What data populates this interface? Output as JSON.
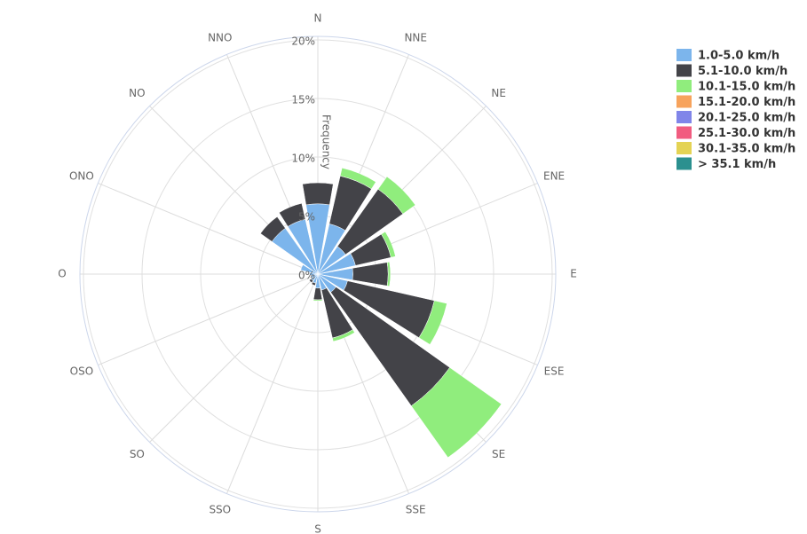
{
  "chart_data": {
    "type": "windrose",
    "categories": [
      "N",
      "NNE",
      "NE",
      "ENE",
      "E",
      "ESE",
      "SE",
      "SSE",
      "S",
      "SSO",
      "SO",
      "OSO",
      "O",
      "ONO",
      "NO",
      "NNO"
    ],
    "y_axis_title": "Frequency",
    "ylim": [
      0,
      20
    ],
    "yticks": [
      {
        "value": 0,
        "label": "0%"
      },
      {
        "value": 5,
        "label": "5%"
      },
      {
        "value": 10,
        "label": "10%"
      },
      {
        "value": 15,
        "label": "15%"
      },
      {
        "value": 20,
        "label": "20%"
      }
    ],
    "grid": true,
    "legend": "right",
    "series": [
      {
        "name": "1.0-5.0 km/h",
        "color": "#7cb5ec",
        "values": [
          6.0,
          4.4,
          2.9,
          3.3,
          3.0,
          2.6,
          1.9,
          1.4,
          1.2,
          0.8,
          0.7,
          0.6,
          0.7,
          1.5,
          4.8,
          4.8
        ]
      },
      {
        "name": "5.1-10.0 km/h",
        "color": "#434348",
        "values": [
          1.8,
          4.2,
          6.0,
          3.1,
          3.0,
          7.6,
          11.9,
          4.2,
          1.0,
          0.2,
          0.2,
          0,
          0,
          0,
          1.2,
          1.4
        ]
      },
      {
        "name": "10.1-15.0 km/h",
        "color": "#90ed7d",
        "values": [
          0,
          0.7,
          1.3,
          0.4,
          0.2,
          1.1,
          5.4,
          0.3,
          0.1,
          0,
          0,
          0,
          0,
          0,
          0,
          0
        ]
      },
      {
        "name": "15.1-20.0 km/h",
        "color": "#f7a35c",
        "values": [
          0,
          0,
          0,
          0,
          0,
          0,
          0,
          0,
          0,
          0,
          0,
          0,
          0,
          0,
          0,
          0
        ]
      },
      {
        "name": "20.1-25.0 km/h",
        "color": "#8085e9",
        "values": [
          0,
          0,
          0,
          0,
          0,
          0,
          0,
          0,
          0,
          0,
          0,
          0,
          0,
          0,
          0,
          0
        ]
      },
      {
        "name": "25.1-30.0 km/h",
        "color": "#f15c80",
        "values": [
          0,
          0,
          0,
          0,
          0,
          0,
          0,
          0,
          0,
          0,
          0,
          0,
          0,
          0,
          0,
          0
        ]
      },
      {
        "name": "30.1-35.0 km/h",
        "color": "#e4d354",
        "values": [
          0,
          0,
          0,
          0,
          0,
          0,
          0,
          0,
          0,
          0,
          0,
          0,
          0,
          0,
          0,
          0
        ]
      },
      {
        "name": "> 35.1 km/h",
        "color": "#2b908f",
        "values": [
          0,
          0,
          0,
          0,
          0,
          0,
          0,
          0,
          0,
          0,
          0,
          0,
          0,
          0,
          0,
          0
        ]
      }
    ]
  }
}
